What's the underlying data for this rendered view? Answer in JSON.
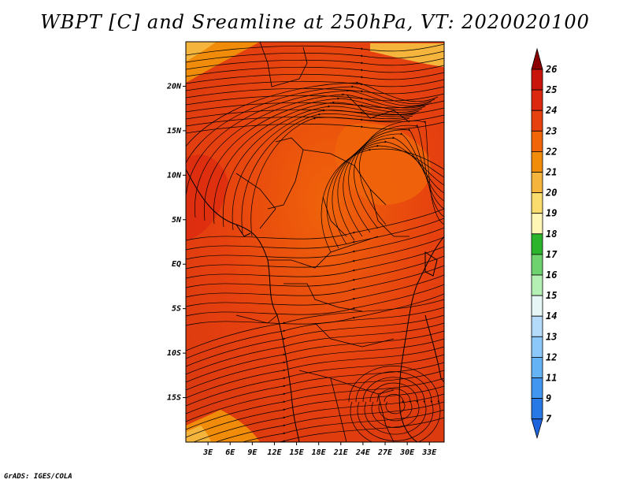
{
  "title": "WBPT [C] and Sreamline at 250hPa, VT: 2020020100",
  "credit": "GrADS: IGES/COLA",
  "map": {
    "type": "map",
    "variable": "Wet-bulb potential temperature",
    "units": "C",
    "level": "250hPa",
    "valid_time": "2020020100",
    "lat_labels": [
      "20N",
      "15N",
      "10N",
      "5N",
      "EQ",
      "5S",
      "10S",
      "15S"
    ],
    "lat_values": [
      20,
      15,
      10,
      5,
      0,
      -5,
      -10,
      -15
    ],
    "lon_labels": [
      "3E",
      "6E",
      "9E",
      "12E",
      "15E",
      "18E",
      "21E",
      "24E",
      "27E",
      "30E",
      "33E"
    ],
    "lon_values": [
      3,
      6,
      9,
      12,
      15,
      18,
      21,
      24,
      27,
      30,
      33
    ],
    "lat_range": [
      -20,
      25
    ],
    "lon_range": [
      0,
      35
    ]
  },
  "colorbar": {
    "labels": [
      "26",
      "25",
      "24",
      "23",
      "22",
      "21",
      "20",
      "19",
      "18",
      "17",
      "16",
      "15",
      "14",
      "13",
      "12",
      "11",
      "9",
      "7"
    ],
    "colors": [
      "#8b0000",
      "#c8140a",
      "#dc280f",
      "#e6410f",
      "#f0640a",
      "#f08c0a",
      "#f5b43c",
      "#fadc6e",
      "#fff5b4",
      "#2db42d",
      "#6ed26e",
      "#b4f0b4",
      "#e6f5f5",
      "#b4dcfa",
      "#8cc8fa",
      "#64b4f5",
      "#4196f0",
      "#2878e6",
      "#1e64dc"
    ]
  }
}
